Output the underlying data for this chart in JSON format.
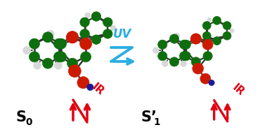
{
  "bg_color": "#ffffff",
  "uv_arrow_color": "#2aaee0",
  "uv_label": "UV",
  "uv_label_fontsize": 12,
  "ir_color": "#e00010",
  "ir_label": "IR",
  "ir_fontsize": 10,
  "s0_label": "S",
  "s0_sub": "0",
  "s1_label": "S’",
  "s1_sub": "1",
  "s_fontsize": 15,
  "s_color": "#000000",
  "fig_width": 3.7,
  "fig_height": 1.89,
  "green_dark": "#0e6e0e",
  "green_mid": "#1a8c1a",
  "red_atom": "#cc1a00",
  "red_carbonyl": "#dd2200",
  "blue_atom": "#1a1a99",
  "white_atom": "#d8d8d8",
  "bond_color": "#333333"
}
